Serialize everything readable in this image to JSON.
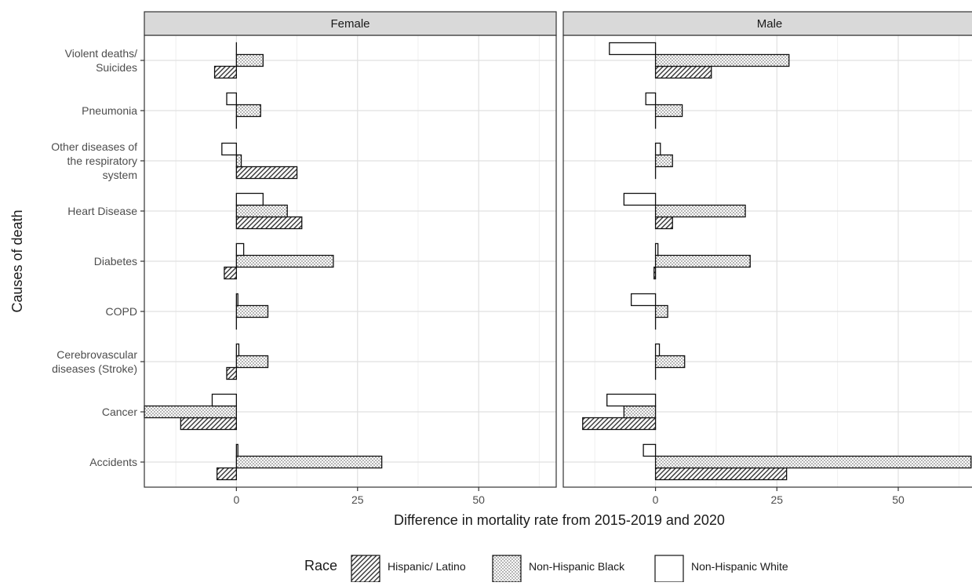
{
  "chart_data": {
    "type": "bar",
    "orientation": "horizontal",
    "xlabel": "Difference in mortality rate from 2015-2019 and 2020",
    "ylabel": "Causes of death",
    "xlim": [
      -19,
      66
    ],
    "xticks": [
      0,
      25,
      50
    ],
    "grid": true,
    "legend": {
      "title": "Race",
      "placement": "bottom",
      "entries": [
        {
          "name": "Hispanic/ Latino",
          "pattern": "hatch"
        },
        {
          "name": "Non-Hispanic Black",
          "pattern": "dots"
        },
        {
          "name": "Non-Hispanic White",
          "pattern": "blank"
        }
      ]
    },
    "categories": [
      [
        "Violent deaths/",
        "Suicides"
      ],
      [
        "Pneumonia"
      ],
      [
        "Other diseases of",
        "the respiratory",
        "system"
      ],
      [
        "Heart Disease"
      ],
      [
        "Diabetes"
      ],
      [
        "COPD"
      ],
      [
        "Cerebrovascular",
        "diseases (Stroke)"
      ],
      [
        "Cancer"
      ],
      [
        "Accidents"
      ]
    ],
    "panels": [
      {
        "title": "Female",
        "series": [
          {
            "name": "Hispanic/ Latino",
            "values": [
              -4.5,
              0,
              12.5,
              13.5,
              -2.5,
              0,
              -2,
              -11.5,
              -4
            ]
          },
          {
            "name": "Non-Hispanic Black",
            "values": [
              5.5,
              5,
              1,
              10.5,
              20,
              6.5,
              6.5,
              -19,
              30
            ]
          },
          {
            "name": "Non-Hispanic White",
            "values": [
              0,
              -2,
              -3,
              5.5,
              1.5,
              0.3,
              0.5,
              -5,
              0.3
            ]
          }
        ]
      },
      {
        "title": "Male",
        "series": [
          {
            "name": "Hispanic/ Latino",
            "values": [
              11.5,
              0,
              0,
              3.5,
              -0.3,
              0,
              0,
              -15,
              27
            ]
          },
          {
            "name": "Non-Hispanic Black",
            "values": [
              27.5,
              5.5,
              3.5,
              18.5,
              19.5,
              2.5,
              6,
              -6.5,
              65
            ]
          },
          {
            "name": "Non-Hispanic White",
            "values": [
              -9.5,
              -2,
              1,
              -6.5,
              0.5,
              -5,
              0.8,
              -10,
              -2.5
            ]
          }
        ]
      }
    ]
  }
}
